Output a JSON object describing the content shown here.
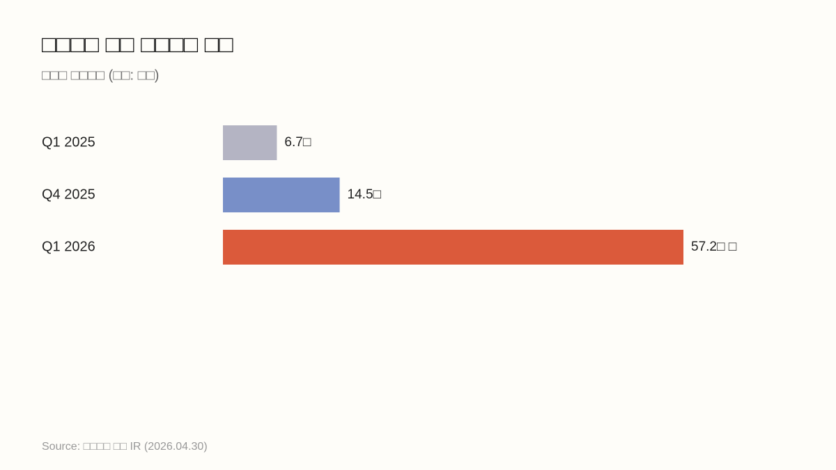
{
  "chart_data": {
    "type": "bar",
    "orientation": "horizontal",
    "title": "□□□□ □□ □□□□ □□",
    "subtitle": "□□□ □□□□ (□□: □□)",
    "categories": [
      "Q1 2025",
      "Q4 2025",
      "Q1 2026"
    ],
    "values": [
      6.7,
      14.5,
      57.2
    ],
    "value_labels": [
      "6.7□",
      "14.5□",
      "57.2□ □"
    ],
    "colors": [
      "#b4b4c3",
      "#788fc8",
      "#db5a3b"
    ],
    "source": "Source: □□□□ □□ IR (2026.04.30)"
  }
}
